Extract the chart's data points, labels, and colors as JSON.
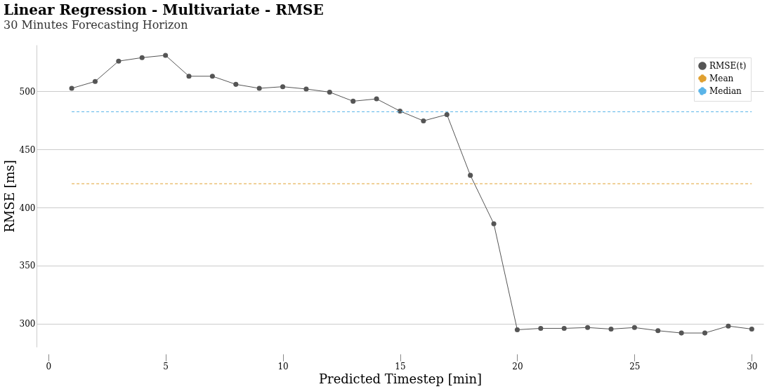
{
  "chart_data": {
    "type": "line",
    "title": "Linear Regression - Multivariate - RMSE",
    "subtitle": "30 Minutes Forecasting Horizon",
    "xlabel": "Predicted Timestep [min]",
    "ylabel": "RMSE [ms]",
    "x": [
      1,
      2,
      3,
      4,
      5,
      6,
      7,
      8,
      9,
      10,
      11,
      12,
      13,
      14,
      15,
      16,
      17,
      18,
      19,
      20,
      21,
      22,
      23,
      24,
      25,
      26,
      27,
      28,
      29,
      30
    ],
    "series": [
      {
        "name": "RMSE(t)",
        "color": "#555555",
        "values": [
          502.6,
          508.5,
          526,
          529,
          531,
          513,
          513,
          506,
          502.6,
          504,
          502,
          499.3,
          491.5,
          493.5,
          483,
          474.6,
          480,
          427.7,
          386,
          294.8,
          296,
          296,
          296.7,
          295.4,
          296.7,
          294,
          292,
          292,
          298,
          295.4
        ]
      }
    ],
    "ref_lines": [
      {
        "axis": "y",
        "value": 420.5,
        "label": "Mean",
        "color": "#e0a030",
        "line_style": "dashed"
      },
      {
        "axis": "y",
        "value": 482.4,
        "label": "Median",
        "color": "#5ab4e8",
        "line_style": "dashed"
      }
    ],
    "xlim": [
      -0.5,
      30.5
    ],
    "ylim": [
      280,
      540
    ],
    "xticks": [
      0,
      5,
      10,
      15,
      20,
      25,
      30
    ],
    "yticks": [
      300,
      350,
      400,
      450,
      500
    ],
    "grid": "y",
    "legend": "top right",
    "marker": "circle",
    "line_style": "solid"
  }
}
